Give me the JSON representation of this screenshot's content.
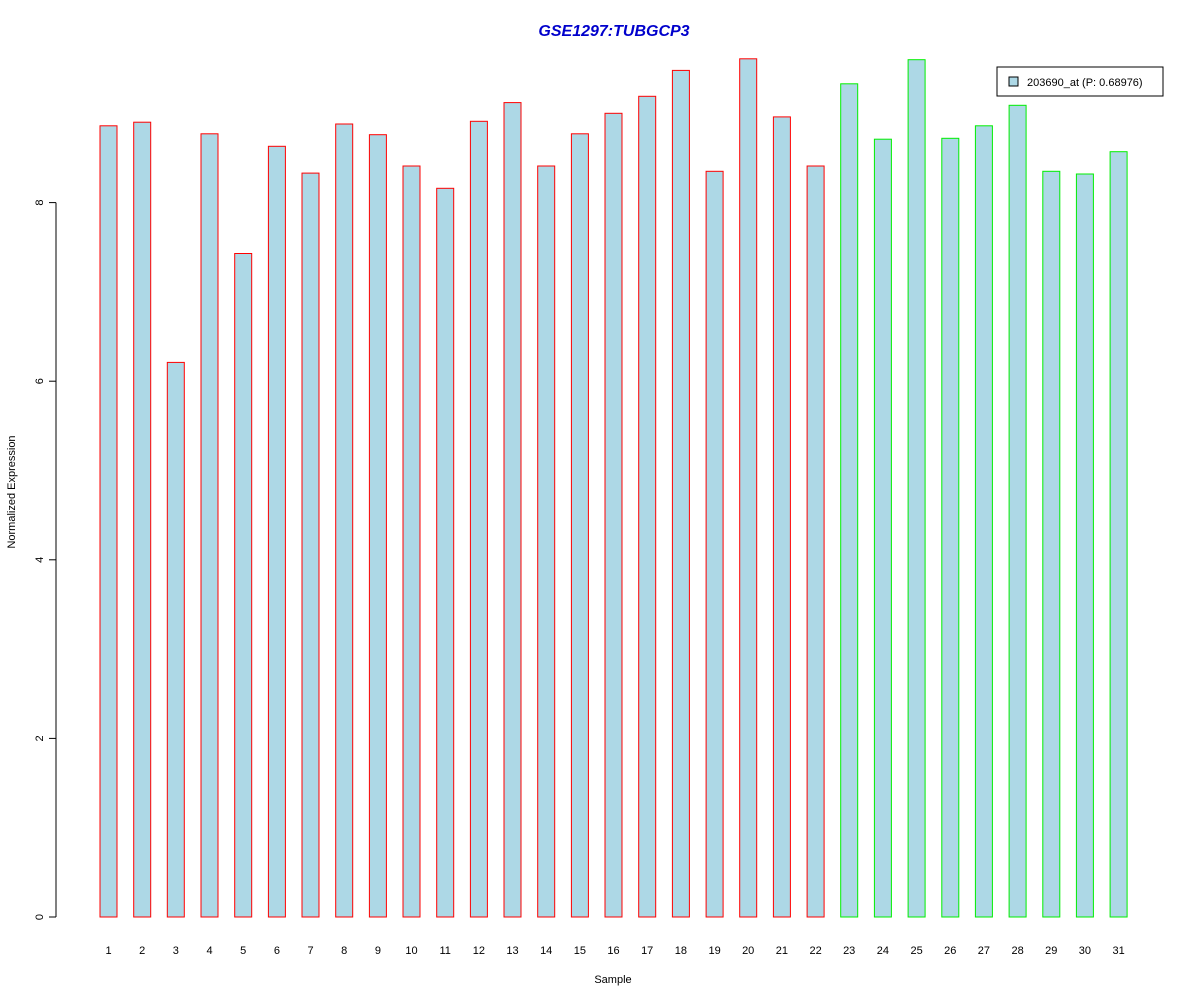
{
  "chart_data": {
    "type": "bar",
    "title": "GSE1297:TUBGCP3",
    "xlabel": "Sample",
    "ylabel": "Normalized Expression",
    "categories": [
      "1",
      "2",
      "3",
      "4",
      "5",
      "6",
      "7",
      "8",
      "9",
      "10",
      "11",
      "12",
      "13",
      "14",
      "15",
      "16",
      "17",
      "18",
      "19",
      "20",
      "21",
      "22",
      "23",
      "24",
      "25",
      "26",
      "27",
      "28",
      "29",
      "30",
      "31"
    ],
    "values": [
      8.86,
      8.9,
      6.21,
      8.77,
      7.43,
      8.63,
      8.33,
      8.88,
      8.76,
      8.41,
      8.16,
      8.91,
      9.12,
      8.41,
      8.77,
      9.0,
      9.19,
      9.48,
      8.35,
      9.61,
      8.96,
      8.41,
      9.33,
      8.71,
      9.6,
      8.72,
      8.86,
      9.09,
      8.35,
      8.32,
      8.57
    ],
    "groups": [
      "A",
      "A",
      "A",
      "A",
      "A",
      "A",
      "A",
      "A",
      "A",
      "A",
      "A",
      "A",
      "A",
      "A",
      "A",
      "A",
      "A",
      "A",
      "A",
      "A",
      "A",
      "A",
      "B",
      "B",
      "B",
      "B",
      "B",
      "B",
      "B",
      "B",
      "B"
    ],
    "ylim": [
      0,
      9.61
    ],
    "yticks": [
      "0",
      "2",
      "4",
      "6",
      "8"
    ],
    "grid": false,
    "legend": {
      "position": "top-right",
      "label": "203690_at (P: 0.68976)"
    },
    "colors": {
      "fill": "#add8e6",
      "group_A_border": "#ff0000",
      "group_B_border": "#00ee00",
      "title": "#0000cc"
    }
  }
}
